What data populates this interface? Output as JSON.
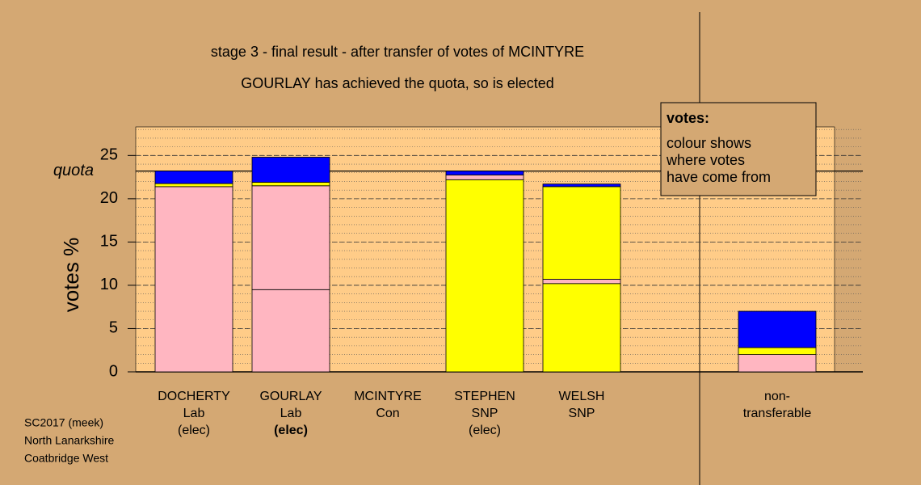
{
  "chart_data": {
    "type": "stacked_bar",
    "title_lines": [
      "stage 3 - final result - after transfer of votes of MCINTYRE",
      "GOURLAY has achieved the quota, so is elected"
    ],
    "y_label": "votes %",
    "ylim": [
      0,
      28.3
    ],
    "yticks": [
      0,
      5,
      10,
      15,
      20,
      25
    ],
    "minor_grid_step": 1,
    "quota": {
      "label": "quota",
      "value": 23.2
    },
    "bars": [
      {
        "lines": [
          "DOCHERTY",
          "Lab",
          "(elec)"
        ],
        "segments": [
          {
            "value": 21.4,
            "color": "#ffb6c1"
          },
          {
            "value": 0.35,
            "color": "#ffff00"
          },
          {
            "value": 1.45,
            "color": "#0000ff"
          }
        ]
      },
      {
        "lines": [
          "GOURLAY",
          "Lab",
          "(elec)"
        ],
        "bold_last_line": true,
        "segments": [
          {
            "value": 9.5,
            "color": "#ffb6c1"
          },
          {
            "value": 12.0,
            "color": "#ffb6c1"
          },
          {
            "value": 0.4,
            "color": "#ffff00"
          },
          {
            "value": 2.9,
            "color": "#0000ff"
          }
        ]
      },
      {
        "lines": [
          "MCINTYRE",
          "Con"
        ],
        "segments": []
      },
      {
        "lines": [
          "STEPHEN",
          "SNP",
          "(elec)"
        ],
        "segments": [
          {
            "value": 22.2,
            "color": "#ffff00"
          },
          {
            "value": 0.55,
            "color": "#ffb6c1"
          },
          {
            "value": 0.45,
            "color": "#0000ff"
          }
        ]
      },
      {
        "lines": [
          "WELSH",
          "SNP"
        ],
        "segments": [
          {
            "value": 10.2,
            "color": "#ffff00"
          },
          {
            "value": 0.5,
            "color": "#ffb6c1"
          },
          {
            "value": 10.7,
            "color": "#ffff00"
          },
          {
            "value": 0.3,
            "color": "#0000ff"
          }
        ]
      },
      {
        "lines": [
          "non-",
          "transferable"
        ],
        "segments": [
          {
            "value": 2.0,
            "color": "#ffb6c1"
          },
          {
            "value": 0.8,
            "color": "#ffff00"
          },
          {
            "value": 4.2,
            "color": "#0000ff"
          }
        ]
      }
    ],
    "legend_lines": [
      "votes:",
      "colour shows",
      "where votes",
      "have come from"
    ],
    "footnote_lines": [
      "SC2017 (meek)",
      "North Lanarkshire",
      "Coatbridge West"
    ]
  }
}
